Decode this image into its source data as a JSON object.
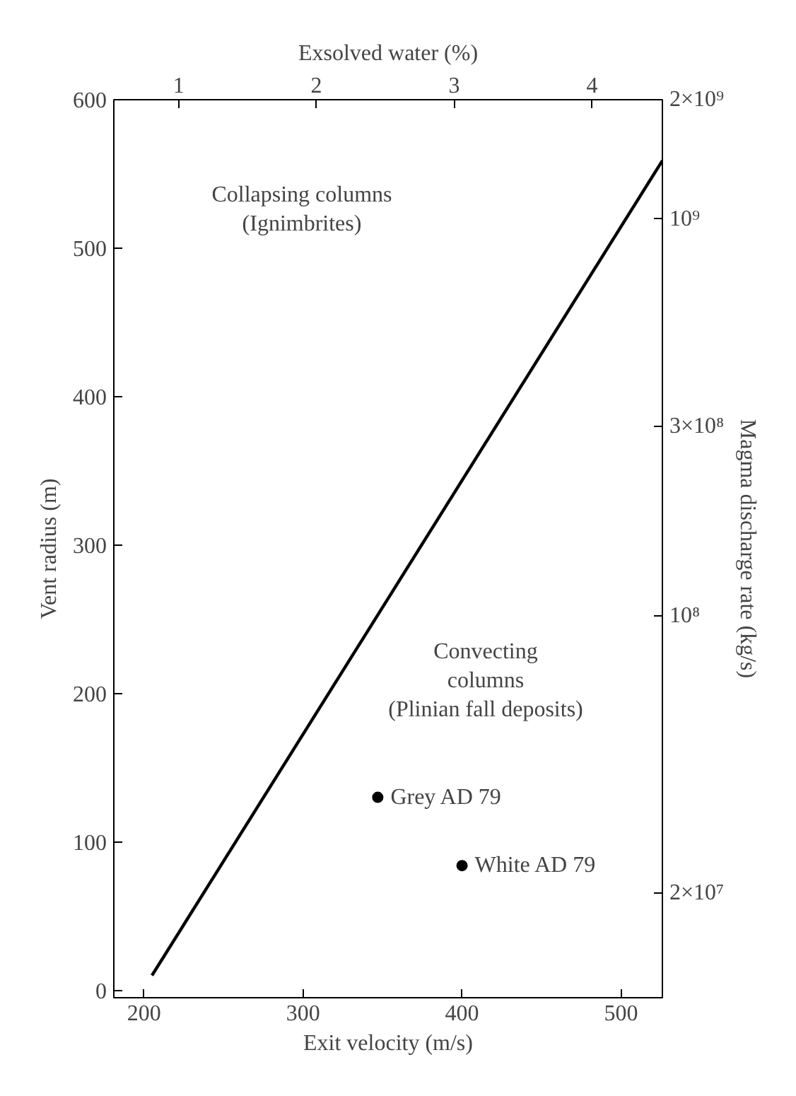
{
  "chart_data": {
    "type": "line",
    "xlabel": "Exit velocity (m/s)",
    "ylabel": "Vent radius (m)",
    "x2label": "Exsolved water (%)",
    "y2label": "Magma discharge rate (kg/s)",
    "xlim": [
      181,
      526
    ],
    "xticks": [
      200,
      300,
      400,
      500
    ],
    "ylim": [
      -5,
      600
    ],
    "yticks": [
      0,
      100,
      200,
      300,
      400,
      500,
      600
    ],
    "x2lim": [
      0.53,
      4.51
    ],
    "x2ticks": [
      1,
      2,
      3,
      4
    ],
    "y2lim": [
      10900000,
      2000000000
    ],
    "log": "y2",
    "y2ticks": [
      {
        "value": 2000000000,
        "label": "2×10⁹"
      },
      {
        "value": 1000000000,
        "label": "10⁹"
      },
      {
        "value": 300000000,
        "label": "3×10⁸"
      },
      {
        "value": 100000000,
        "label": "10⁸"
      },
      {
        "value": 20000000,
        "label": "2×10⁷"
      }
    ],
    "series": [
      {
        "color": "#000000",
        "x": [
          205,
          526
        ],
        "values": [
          10,
          559
        ]
      },
      {
        "type": "scatter",
        "color": "#000000",
        "x": [
          347,
          400
        ],
        "values": [
          130,
          84
        ],
        "marker": "circle"
      }
    ],
    "annotations": [
      "Collapsing columns\n(Ignimbrites)",
      "Convecting\ncolumns\n(Plinian fall deposits)",
      {
        "text": "Grey AD 79",
        "x": 347,
        "y": 130
      },
      {
        "text": "White AD 79",
        "x": 400,
        "y": 84
      }
    ],
    "grid": false
  }
}
